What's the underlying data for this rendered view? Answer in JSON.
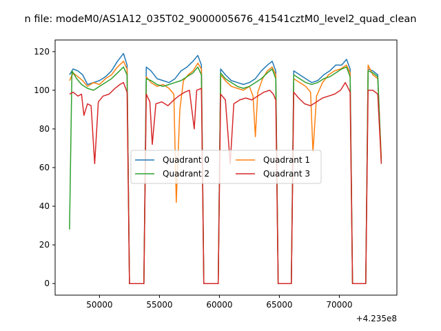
{
  "chart_data": {
    "type": "line",
    "title": "n file: modeM0/AS1A12_035T02_9000005676_41541cztM0_level2_quad_clean",
    "xlabel": "",
    "ylabel": "",
    "x_offset_label": "+4.235e8",
    "xlim": [
      46300,
      74800
    ],
    "ylim": [
      -6,
      126
    ],
    "xticks": [
      50000,
      55000,
      60000,
      65000,
      70000
    ],
    "yticks": [
      0,
      20,
      40,
      60,
      80,
      100,
      120
    ],
    "grid": false,
    "legend": {
      "placement": "center",
      "columns": 2
    },
    "series": [
      {
        "name": "Quadrant 0",
        "color": "#1f77b4",
        "points": [
          [
            47500,
            108
          ],
          [
            47800,
            111
          ],
          [
            48200,
            110
          ],
          [
            48600,
            108
          ],
          [
            49000,
            103
          ],
          [
            49500,
            104
          ],
          [
            50000,
            105
          ],
          [
            50500,
            107
          ],
          [
            51000,
            110
          ],
          [
            51500,
            115
          ],
          [
            52000,
            119
          ],
          [
            52300,
            113
          ],
          [
            52500,
            0
          ],
          [
            53700,
            0
          ],
          [
            53900,
            112
          ],
          [
            54300,
            110
          ],
          [
            54800,
            106
          ],
          [
            55300,
            105
          ],
          [
            55800,
            104
          ],
          [
            56300,
            106
          ],
          [
            56800,
            110
          ],
          [
            57300,
            112
          ],
          [
            57800,
            115
          ],
          [
            58200,
            118
          ],
          [
            58500,
            113
          ],
          [
            58700,
            0
          ],
          [
            59900,
            0
          ],
          [
            60100,
            111
          ],
          [
            60500,
            108
          ],
          [
            61000,
            105
          ],
          [
            61500,
            104
          ],
          [
            62000,
            103
          ],
          [
            62500,
            104
          ],
          [
            63000,
            106
          ],
          [
            63500,
            110
          ],
          [
            64000,
            113
          ],
          [
            64400,
            115
          ],
          [
            64700,
            110
          ],
          [
            64900,
            0
          ],
          [
            66000,
            0
          ],
          [
            66200,
            110
          ],
          [
            66700,
            108
          ],
          [
            67200,
            106
          ],
          [
            67700,
            104
          ],
          [
            68200,
            105
          ],
          [
            68700,
            108
          ],
          [
            69200,
            110
          ],
          [
            69700,
            113
          ],
          [
            70200,
            113
          ],
          [
            70600,
            116
          ],
          [
            70900,
            111
          ],
          [
            71100,
            0
          ],
          [
            72200,
            0
          ],
          [
            72400,
            111
          ],
          [
            72800,
            110
          ],
          [
            73200,
            108
          ],
          [
            73500,
            63
          ]
        ]
      },
      {
        "name": "Quadrant 1",
        "color": "#ff7f0e",
        "points": [
          [
            47500,
            105
          ],
          [
            47800,
            109
          ],
          [
            48200,
            107
          ],
          [
            48600,
            105
          ],
          [
            49000,
            102
          ],
          [
            49500,
            104
          ],
          [
            50000,
            103
          ],
          [
            50500,
            106
          ],
          [
            51000,
            108
          ],
          [
            51500,
            112
          ],
          [
            52000,
            115
          ],
          [
            52300,
            111
          ],
          [
            52500,
            0
          ],
          [
            53700,
            0
          ],
          [
            53900,
            107
          ],
          [
            54300,
            104
          ],
          [
            54800,
            102
          ],
          [
            55300,
            103
          ],
          [
            55800,
            101
          ],
          [
            56200,
            98
          ],
          [
            56400,
            42
          ],
          [
            56700,
            90
          ],
          [
            57000,
            105
          ],
          [
            57400,
            108
          ],
          [
            57800,
            110
          ],
          [
            58200,
            114
          ],
          [
            58500,
            111
          ],
          [
            58700,
            0
          ],
          [
            59900,
            0
          ],
          [
            60100,
            108
          ],
          [
            60500,
            105
          ],
          [
            61000,
            102
          ],
          [
            61500,
            101
          ],
          [
            62000,
            100
          ],
          [
            62500,
            102
          ],
          [
            62800,
            97
          ],
          [
            63000,
            76
          ],
          [
            63200,
            99
          ],
          [
            63600,
            106
          ],
          [
            64000,
            110
          ],
          [
            64400,
            112
          ],
          [
            64700,
            108
          ],
          [
            64900,
            0
          ],
          [
            66000,
            0
          ],
          [
            66200,
            106
          ],
          [
            66700,
            104
          ],
          [
            67200,
            102
          ],
          [
            67600,
            99
          ],
          [
            67800,
            68
          ],
          [
            68100,
            97
          ],
          [
            68600,
            104
          ],
          [
            69100,
            108
          ],
          [
            69600,
            110
          ],
          [
            70100,
            111
          ],
          [
            70600,
            113
          ],
          [
            70900,
            109
          ],
          [
            71100,
            0
          ],
          [
            72200,
            0
          ],
          [
            72400,
            113
          ],
          [
            72800,
            108
          ],
          [
            73200,
            106
          ],
          [
            73500,
            65
          ]
        ]
      },
      {
        "name": "Quadrant 2",
        "color": "#2ca02c",
        "points": [
          [
            47500,
            28
          ],
          [
            47700,
            110
          ],
          [
            48100,
            106
          ],
          [
            48500,
            103
          ],
          [
            49000,
            101
          ],
          [
            49500,
            100
          ],
          [
            50000,
            102
          ],
          [
            50500,
            104
          ],
          [
            51000,
            106
          ],
          [
            51500,
            109
          ],
          [
            52000,
            112
          ],
          [
            52300,
            108
          ],
          [
            52500,
            0
          ],
          [
            53700,
            0
          ],
          [
            53900,
            106
          ],
          [
            54300,
            105
          ],
          [
            54800,
            103
          ],
          [
            55300,
            102
          ],
          [
            55800,
            103
          ],
          [
            56300,
            104
          ],
          [
            56800,
            105
          ],
          [
            57300,
            107
          ],
          [
            57800,
            109
          ],
          [
            58200,
            112
          ],
          [
            58500,
            108
          ],
          [
            58700,
            0
          ],
          [
            59900,
            0
          ],
          [
            60100,
            109
          ],
          [
            60500,
            106
          ],
          [
            61000,
            104
          ],
          [
            61500,
            102
          ],
          [
            62000,
            101
          ],
          [
            62500,
            102
          ],
          [
            63000,
            104
          ],
          [
            63500,
            106
          ],
          [
            64000,
            109
          ],
          [
            64400,
            111
          ],
          [
            64700,
            106
          ],
          [
            64900,
            0
          ],
          [
            66000,
            0
          ],
          [
            66200,
            108
          ],
          [
            66700,
            106
          ],
          [
            67200,
            104
          ],
          [
            67700,
            103
          ],
          [
            68200,
            104
          ],
          [
            68700,
            106
          ],
          [
            69200,
            107
          ],
          [
            69700,
            109
          ],
          [
            70200,
            111
          ],
          [
            70600,
            112
          ],
          [
            70900,
            107
          ],
          [
            71100,
            0
          ],
          [
            72200,
            0
          ],
          [
            72400,
            110
          ],
          [
            72800,
            109
          ],
          [
            73200,
            107
          ],
          [
            73500,
            62
          ]
        ]
      },
      {
        "name": "Quadrant 3",
        "color": "#d62728",
        "points": [
          [
            47500,
            98
          ],
          [
            47800,
            99
          ],
          [
            48200,
            97
          ],
          [
            48500,
            98
          ],
          [
            48700,
            87
          ],
          [
            49000,
            93
          ],
          [
            49300,
            92
          ],
          [
            49600,
            62
          ],
          [
            49900,
            94
          ],
          [
            50300,
            97
          ],
          [
            50800,
            98
          ],
          [
            51300,
            101
          ],
          [
            51700,
            103
          ],
          [
            52000,
            104
          ],
          [
            52300,
            99
          ],
          [
            52500,
            0
          ],
          [
            53700,
            0
          ],
          [
            53900,
            98
          ],
          [
            54200,
            94
          ],
          [
            54400,
            72
          ],
          [
            54700,
            93
          ],
          [
            55200,
            94
          ],
          [
            55700,
            92
          ],
          [
            56200,
            95
          ],
          [
            56600,
            97
          ],
          [
            57100,
            99
          ],
          [
            57500,
            100
          ],
          [
            57900,
            80
          ],
          [
            58100,
            100
          ],
          [
            58500,
            101
          ],
          [
            58700,
            0
          ],
          [
            59900,
            0
          ],
          [
            60100,
            98
          ],
          [
            60500,
            95
          ],
          [
            60900,
            62
          ],
          [
            61200,
            93
          ],
          [
            61700,
            95
          ],
          [
            62200,
            96
          ],
          [
            62700,
            95
          ],
          [
            63200,
            97
          ],
          [
            63700,
            99
          ],
          [
            64200,
            100
          ],
          [
            64500,
            98
          ],
          [
            64700,
            95
          ],
          [
            64900,
            0
          ],
          [
            66000,
            0
          ],
          [
            66200,
            99
          ],
          [
            66600,
            96
          ],
          [
            67100,
            93
          ],
          [
            67600,
            92
          ],
          [
            68100,
            94
          ],
          [
            68600,
            96
          ],
          [
            69100,
            97
          ],
          [
            69600,
            98
          ],
          [
            70100,
            100
          ],
          [
            70500,
            104
          ],
          [
            70900,
            99
          ],
          [
            71100,
            0
          ],
          [
            72200,
            0
          ],
          [
            72400,
            100
          ],
          [
            72800,
            100
          ],
          [
            73200,
            98
          ],
          [
            73500,
            62
          ]
        ]
      }
    ]
  }
}
